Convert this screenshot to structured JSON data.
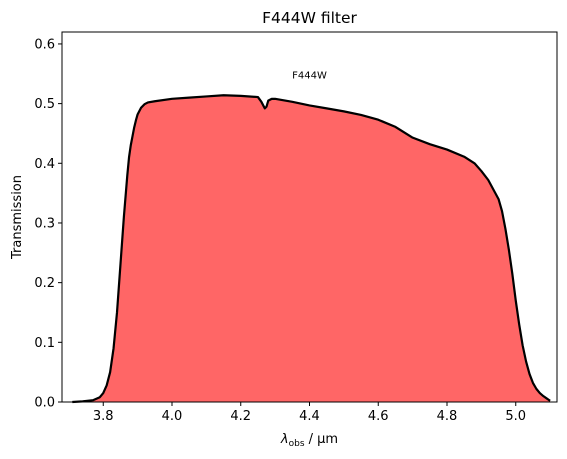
{
  "chart_data": {
    "type": "area",
    "title": "F444W filter",
    "xlabel_main": "λ",
    "xlabel_sub": "obs",
    "xlabel_unit": " / μm",
    "ylabel": "Transmission",
    "annotation": {
      "text": "F444W",
      "x": 4.4,
      "y": 0.547
    },
    "xlim": [
      3.68,
      5.12
    ],
    "ylim": [
      0.0,
      0.62
    ],
    "xticks": [
      3.8,
      4.0,
      4.2,
      4.4,
      4.6,
      4.8,
      5.0
    ],
    "xtick_labels": [
      "3.8",
      "4.0",
      "4.2",
      "4.4",
      "4.6",
      "4.8",
      "5.0"
    ],
    "yticks": [
      0.0,
      0.1,
      0.2,
      0.3,
      0.4,
      0.5,
      0.6
    ],
    "ytick_labels": [
      "0.0",
      "0.1",
      "0.2",
      "0.3",
      "0.4",
      "0.5",
      "0.6"
    ],
    "fill_color": "#ff6666",
    "line_color": "#000000",
    "series": [
      {
        "x": [
          3.71,
          3.74,
          3.77,
          3.79,
          3.8,
          3.81,
          3.82,
          3.83,
          3.84,
          3.85,
          3.86,
          3.87,
          3.875,
          3.88,
          3.885,
          3.89,
          3.895,
          3.9,
          3.91,
          3.92,
          3.93,
          3.95,
          4.0,
          4.05,
          4.1,
          4.15,
          4.2,
          4.25,
          4.26,
          4.27,
          4.275,
          4.28,
          4.29,
          4.3,
          4.35,
          4.4,
          4.45,
          4.5,
          4.55,
          4.6,
          4.65,
          4.7,
          4.75,
          4.8,
          4.85,
          4.88,
          4.9,
          4.92,
          4.95,
          4.96,
          4.97,
          4.98,
          4.99,
          5.0,
          5.01,
          5.02,
          5.03,
          5.04,
          5.05,
          5.06,
          5.07,
          5.08,
          5.09,
          5.095,
          5.1
        ],
        "y": [
          0.0,
          0.001,
          0.003,
          0.008,
          0.015,
          0.028,
          0.05,
          0.09,
          0.15,
          0.23,
          0.31,
          0.38,
          0.41,
          0.43,
          0.445,
          0.46,
          0.472,
          0.482,
          0.493,
          0.499,
          0.502,
          0.504,
          0.508,
          0.51,
          0.512,
          0.514,
          0.513,
          0.511,
          0.503,
          0.492,
          0.495,
          0.505,
          0.508,
          0.508,
          0.503,
          0.497,
          0.492,
          0.487,
          0.481,
          0.473,
          0.461,
          0.443,
          0.432,
          0.423,
          0.411,
          0.4,
          0.387,
          0.372,
          0.34,
          0.32,
          0.29,
          0.255,
          0.215,
          0.17,
          0.13,
          0.095,
          0.068,
          0.047,
          0.032,
          0.022,
          0.015,
          0.01,
          0.006,
          0.004,
          0.002
        ]
      }
    ]
  }
}
